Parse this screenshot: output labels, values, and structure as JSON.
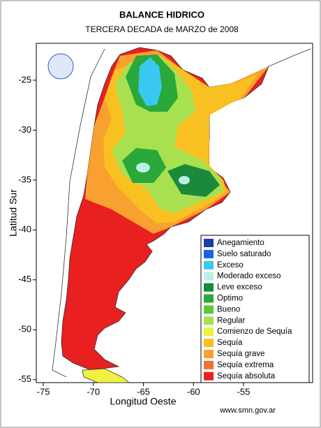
{
  "header": {
    "title": "BALANCE HIDRICO",
    "subtitle": "TERCERA DECADA de MARZO de 2008"
  },
  "map": {
    "x_label": "Longitud Oeste",
    "y_label": "Latitud Sur",
    "xlim": [
      -75.7,
      -48.1
    ],
    "ylim": [
      -21.3,
      -55.3
    ],
    "xticks": [
      -75,
      -70,
      -65,
      -60,
      -55
    ],
    "yticks": [
      -25,
      -30,
      -35,
      -40,
      -45,
      -50,
      -55
    ]
  },
  "legend": [
    {
      "name": "Anegamiento",
      "color": "#1a3fa8"
    },
    {
      "name": "Suelo saturado",
      "color": "#1c62e0"
    },
    {
      "name": "Exceso",
      "color": "#38c8f0"
    },
    {
      "name": "Moderado exceso",
      "color": "#b8f0e8"
    },
    {
      "name": "Leve exceso",
      "color": "#1a8a3a"
    },
    {
      "name": "Optimo",
      "color": "#2aa83a"
    },
    {
      "name": "Bueno",
      "color": "#5cc83a"
    },
    {
      "name": "Regular",
      "color": "#a8e050"
    },
    {
      "name": "Comienzo de Sequía",
      "color": "#f0f040"
    },
    {
      "name": "Sequía",
      "color": "#f8c020"
    },
    {
      "name": "Sequía grave",
      "color": "#f8a030"
    },
    {
      "name": "Sequía extrema",
      "color": "#f07030"
    },
    {
      "name": "Sequía absoluta",
      "color": "#e82020"
    }
  ],
  "footer": {
    "source": "www.smn.gov.ar"
  }
}
